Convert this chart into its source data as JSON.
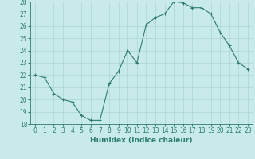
{
  "xlabel": "Humidex (Indice chaleur)",
  "ylabel": "",
  "x": [
    0,
    1,
    2,
    3,
    4,
    5,
    6,
    7,
    8,
    9,
    10,
    11,
    12,
    13,
    14,
    15,
    16,
    17,
    18,
    19,
    20,
    21,
    22,
    23
  ],
  "y": [
    22,
    21.8,
    20.5,
    20.0,
    19.8,
    18.7,
    18.3,
    18.3,
    21.3,
    22.3,
    24.0,
    23.0,
    26.1,
    26.7,
    27.0,
    28.0,
    27.9,
    27.5,
    27.5,
    27.0,
    25.5,
    24.4,
    23.0,
    22.5
  ],
  "line_color": "#2e7d6e",
  "marker": "+",
  "bg_color": "#c8eaea",
  "grid_color": "#aed4d4",
  "ylim": [
    18,
    28
  ],
  "yticks": [
    18,
    19,
    20,
    21,
    22,
    23,
    24,
    25,
    26,
    27,
    28
  ],
  "xticks": [
    0,
    1,
    2,
    3,
    4,
    5,
    6,
    7,
    8,
    9,
    10,
    11,
    12,
    13,
    14,
    15,
    16,
    17,
    18,
    19,
    20,
    21,
    22,
    23
  ],
  "tick_label_fontsize": 5.5,
  "xlabel_fontsize": 6.5,
  "line_width": 0.8,
  "marker_size": 3.5
}
